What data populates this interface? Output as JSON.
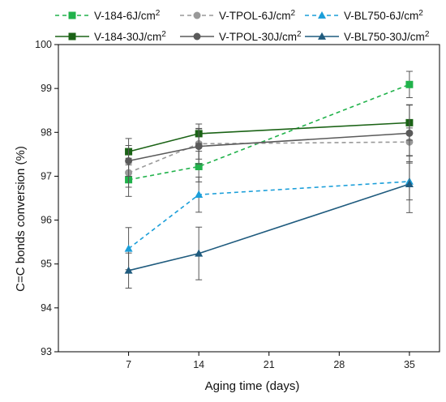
{
  "chart_data": {
    "type": "line",
    "title": "",
    "xlabel": "Aging time (days)",
    "ylabel": "C=C bonds conversion (%)",
    "xlim": [
      0,
      38
    ],
    "ylim": [
      93,
      100
    ],
    "xticks": [
      7,
      14,
      21,
      28,
      35
    ],
    "yticks": [
      93,
      94,
      95,
      96,
      97,
      98,
      99,
      100
    ],
    "grid": false,
    "legend_position": "top",
    "x": [
      7,
      14,
      35
    ],
    "series": [
      {
        "name_prefix": "V-184-6J/cm",
        "name_sup": "2",
        "values": [
          96.92,
          97.22,
          99.09
        ],
        "errors": [
          0.38,
          0.35,
          0.3
        ],
        "color": "#21b24b",
        "dash": "dashed",
        "marker": "square"
      },
      {
        "name_prefix": "V-TPOL-6J/cm",
        "name_sup": "2",
        "values": [
          97.08,
          97.74,
          97.78
        ],
        "errors": [
          0.33,
          0.35,
          0.32
        ],
        "color": "#999999",
        "dash": "dashed",
        "marker": "circle"
      },
      {
        "name_prefix": "V-BL750-6J/cm",
        "name_sup": "2",
        "values": [
          95.35,
          96.58,
          96.88
        ],
        "errors": [
          0.48,
          0.4,
          0.42
        ],
        "color": "#1a9ed9",
        "dash": "dashed",
        "marker": "triangle"
      },
      {
        "name_prefix": "V-184-30J/cm",
        "name_sup": "2",
        "values": [
          97.56,
          97.97,
          98.22
        ],
        "errors": [
          0.3,
          0.22,
          0.4
        ],
        "color": "#1b6316",
        "dash": "solid",
        "marker": "square"
      },
      {
        "name_prefix": "V-TPOL-30J/cm",
        "name_sup": "2",
        "values": [
          97.35,
          97.68,
          97.98
        ],
        "errors": [
          0.35,
          0.4,
          0.65
        ],
        "color": "#5a5a5a",
        "dash": "solid",
        "marker": "circle"
      },
      {
        "name_prefix": "V-BL750-30J/cm",
        "name_sup": "2",
        "values": [
          94.85,
          95.24,
          96.82
        ],
        "errors": [
          0.4,
          0.6,
          0.65
        ],
        "color": "#1f5b7e",
        "dash": "solid",
        "marker": "triangle"
      }
    ]
  }
}
